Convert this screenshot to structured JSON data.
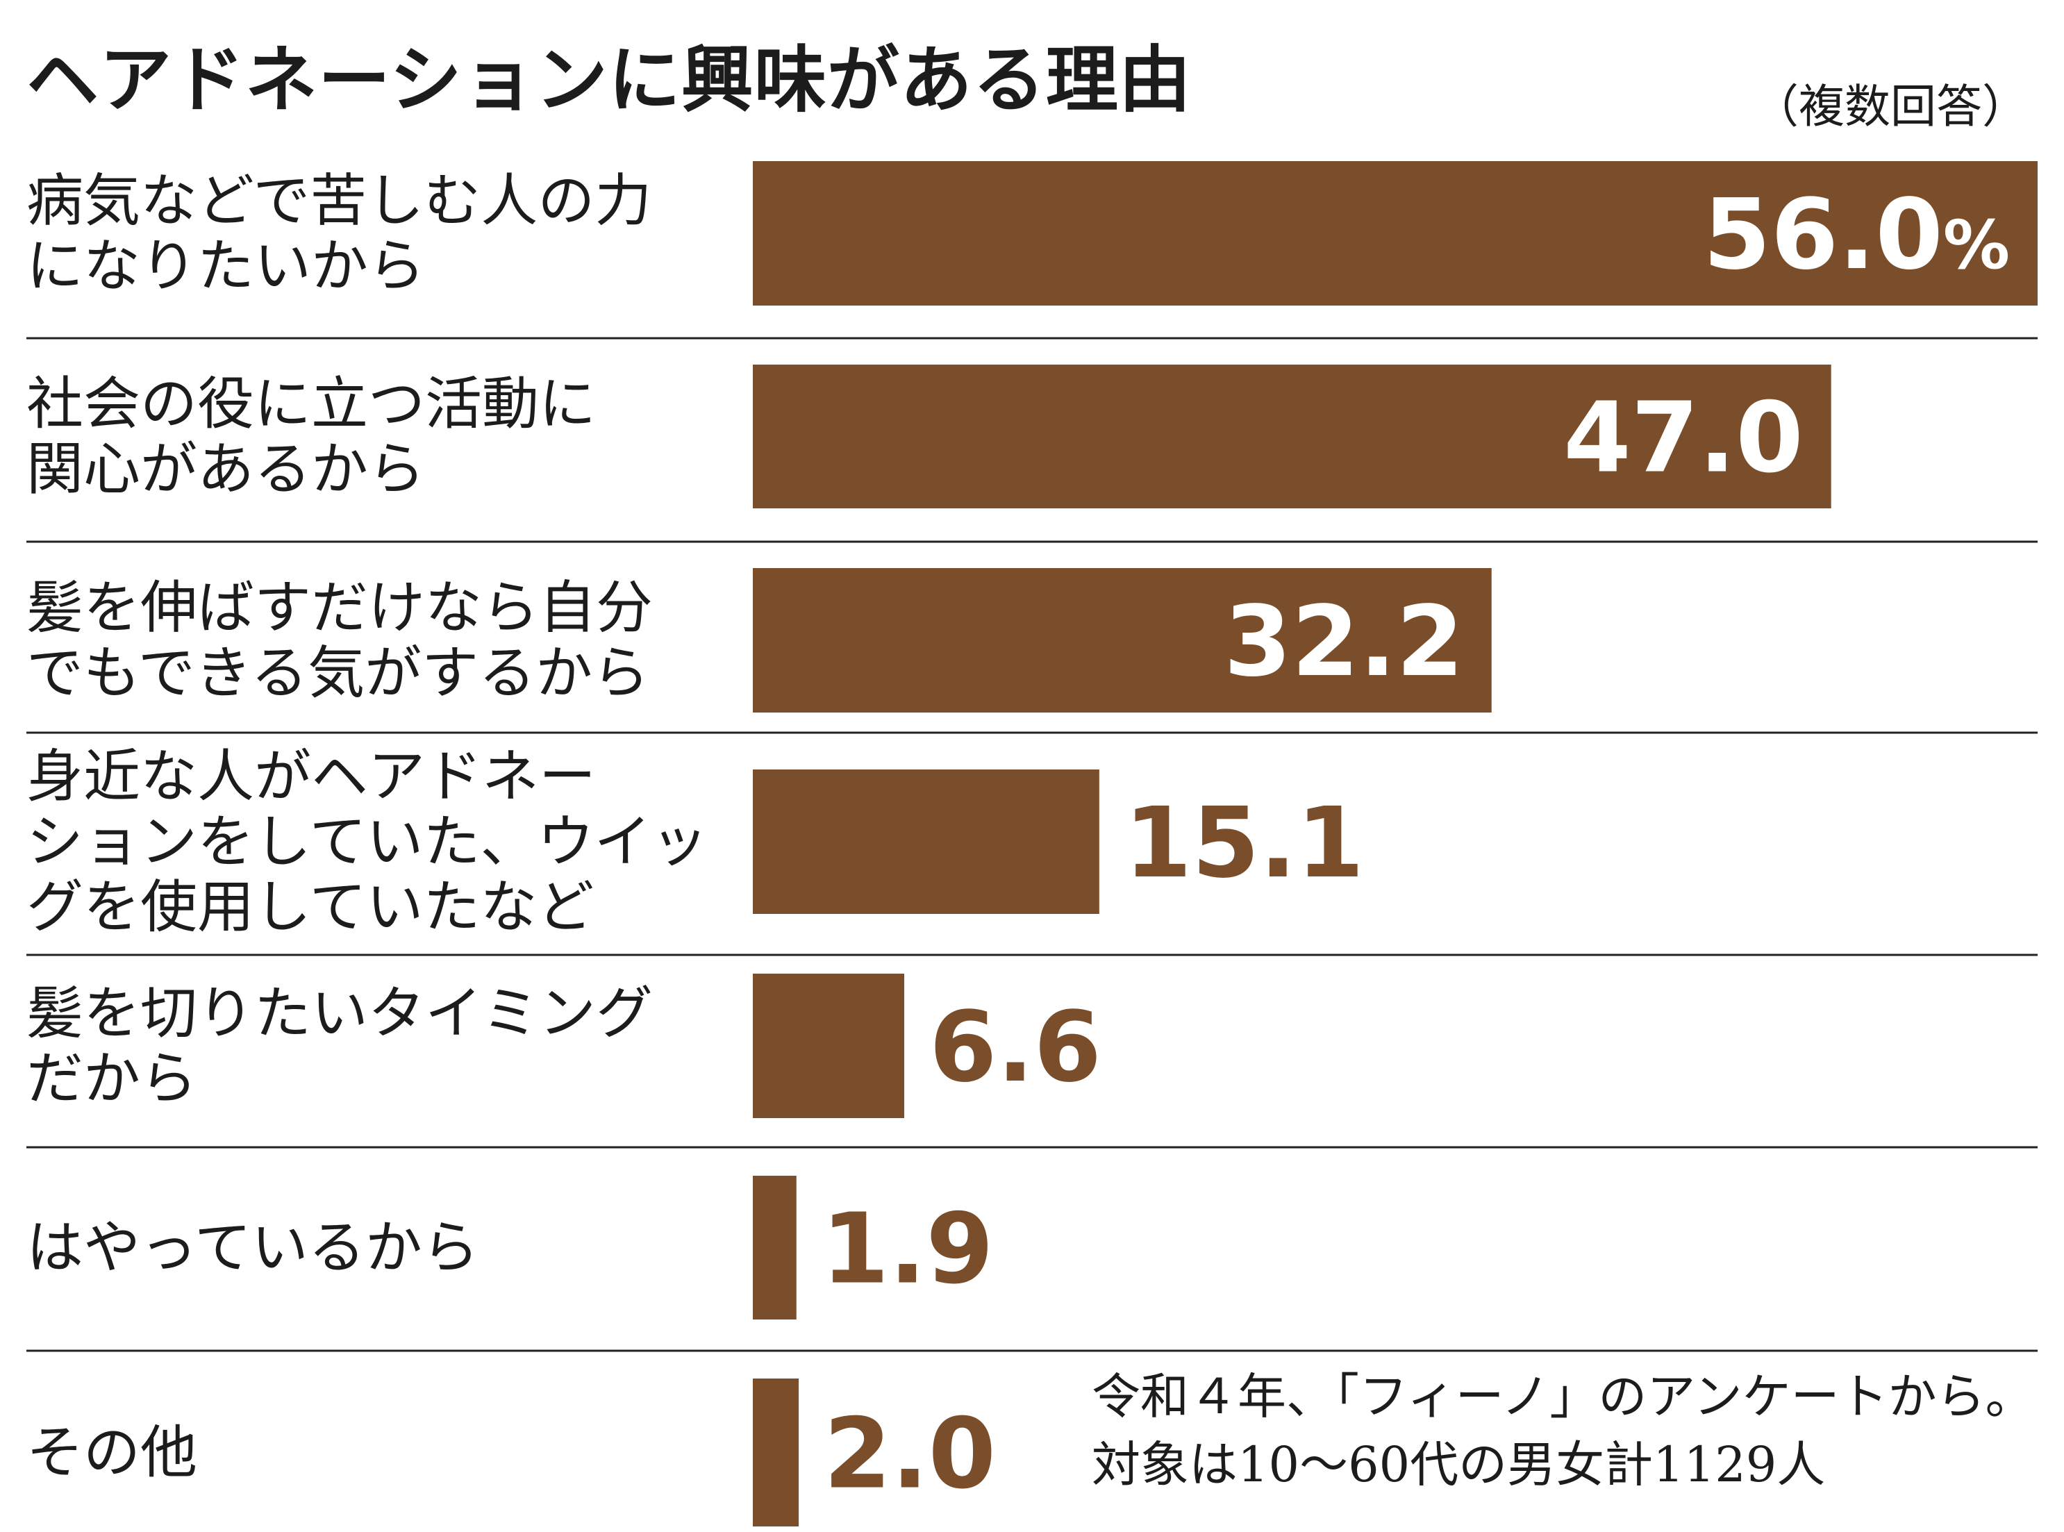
{
  "header": {
    "title": "ヘアドネーションに興味がある理由",
    "note": "（複数回答）"
  },
  "colors": {
    "bar": "#7a4e2a",
    "value_inside": "#ffffff",
    "value_outside": "#7a4e2a",
    "divider": "#222222"
  },
  "chart_data": {
    "type": "bar",
    "orientation": "horizontal",
    "title": "ヘアドネーションに興味がある理由",
    "subtitle": "（複数回答）",
    "unit": "%",
    "categories": [
      [
        "病気などで苦しむ人の力",
        "になりたいから"
      ],
      [
        "社会の役に立つ活動に",
        "関心があるから"
      ],
      [
        "髪を伸ばすだけなら自分",
        "でもできる気がするから"
      ],
      [
        "身近な人がヘアドネー",
        "ションをしていた、ウイッ",
        "グを使用していたなど"
      ],
      [
        "髪を切りたいタイミング",
        "だから"
      ],
      [
        "はやっているから"
      ],
      [
        "その他"
      ]
    ],
    "values": [
      56.0,
      47.0,
      32.2,
      15.1,
      6.6,
      1.9,
      2.0
    ],
    "value_labels": [
      "56.0",
      "47.0",
      "32.2",
      "15.1",
      "6.6",
      "1.9",
      "2.0"
    ],
    "first_value_suffix": "%",
    "grid": false
  },
  "source": {
    "lines": [
      "令和４年、「フィーノ」のアンケートから。",
      "対象は10〜60代の男女計1129人"
    ]
  }
}
